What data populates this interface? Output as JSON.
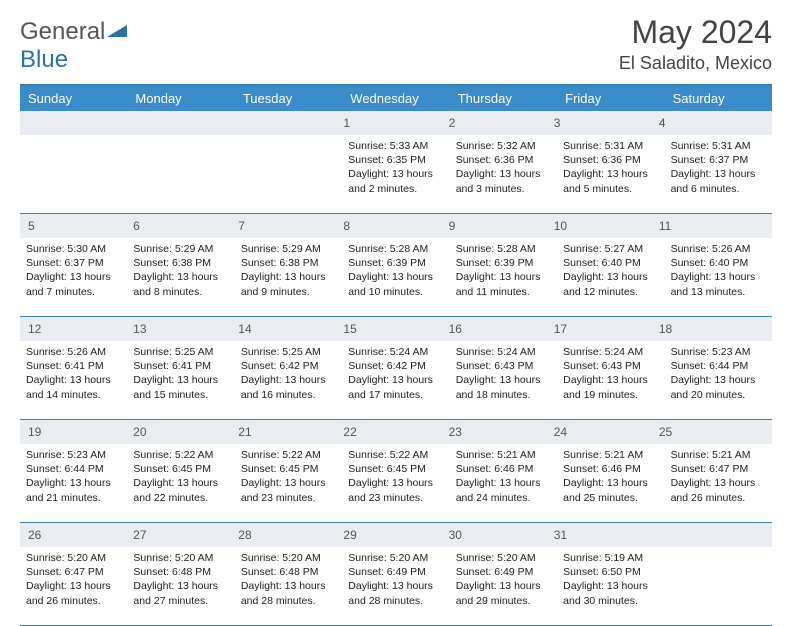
{
  "logo": {
    "part1": "General",
    "part2": "Blue"
  },
  "title": "May 2024",
  "location": "El Saladito, Mexico",
  "header_color": "#3a8bc9",
  "border_color": "#3a7fb5",
  "numrow_bg": "#e9edf1",
  "day_names": [
    "Sunday",
    "Monday",
    "Tuesday",
    "Wednesday",
    "Thursday",
    "Friday",
    "Saturday"
  ],
  "weeks": [
    {
      "nums": [
        "",
        "",
        "",
        "1",
        "2",
        "3",
        "4"
      ],
      "cells": [
        null,
        null,
        null,
        {
          "sr": "5:33 AM",
          "ss": "6:35 PM",
          "dl": "13 hours and 2 minutes."
        },
        {
          "sr": "5:32 AM",
          "ss": "6:36 PM",
          "dl": "13 hours and 3 minutes."
        },
        {
          "sr": "5:31 AM",
          "ss": "6:36 PM",
          "dl": "13 hours and 5 minutes."
        },
        {
          "sr": "5:31 AM",
          "ss": "6:37 PM",
          "dl": "13 hours and 6 minutes."
        }
      ]
    },
    {
      "nums": [
        "5",
        "6",
        "7",
        "8",
        "9",
        "10",
        "11"
      ],
      "cells": [
        {
          "sr": "5:30 AM",
          "ss": "6:37 PM",
          "dl": "13 hours and 7 minutes."
        },
        {
          "sr": "5:29 AM",
          "ss": "6:38 PM",
          "dl": "13 hours and 8 minutes."
        },
        {
          "sr": "5:29 AM",
          "ss": "6:38 PM",
          "dl": "13 hours and 9 minutes."
        },
        {
          "sr": "5:28 AM",
          "ss": "6:39 PM",
          "dl": "13 hours and 10 minutes."
        },
        {
          "sr": "5:28 AM",
          "ss": "6:39 PM",
          "dl": "13 hours and 11 minutes."
        },
        {
          "sr": "5:27 AM",
          "ss": "6:40 PM",
          "dl": "13 hours and 12 minutes."
        },
        {
          "sr": "5:26 AM",
          "ss": "6:40 PM",
          "dl": "13 hours and 13 minutes."
        }
      ]
    },
    {
      "nums": [
        "12",
        "13",
        "14",
        "15",
        "16",
        "17",
        "18"
      ],
      "cells": [
        {
          "sr": "5:26 AM",
          "ss": "6:41 PM",
          "dl": "13 hours and 14 minutes."
        },
        {
          "sr": "5:25 AM",
          "ss": "6:41 PM",
          "dl": "13 hours and 15 minutes."
        },
        {
          "sr": "5:25 AM",
          "ss": "6:42 PM",
          "dl": "13 hours and 16 minutes."
        },
        {
          "sr": "5:24 AM",
          "ss": "6:42 PM",
          "dl": "13 hours and 17 minutes."
        },
        {
          "sr": "5:24 AM",
          "ss": "6:43 PM",
          "dl": "13 hours and 18 minutes."
        },
        {
          "sr": "5:24 AM",
          "ss": "6:43 PM",
          "dl": "13 hours and 19 minutes."
        },
        {
          "sr": "5:23 AM",
          "ss": "6:44 PM",
          "dl": "13 hours and 20 minutes."
        }
      ]
    },
    {
      "nums": [
        "19",
        "20",
        "21",
        "22",
        "23",
        "24",
        "25"
      ],
      "cells": [
        {
          "sr": "5:23 AM",
          "ss": "6:44 PM",
          "dl": "13 hours and 21 minutes."
        },
        {
          "sr": "5:22 AM",
          "ss": "6:45 PM",
          "dl": "13 hours and 22 minutes."
        },
        {
          "sr": "5:22 AM",
          "ss": "6:45 PM",
          "dl": "13 hours and 23 minutes."
        },
        {
          "sr": "5:22 AM",
          "ss": "6:45 PM",
          "dl": "13 hours and 23 minutes."
        },
        {
          "sr": "5:21 AM",
          "ss": "6:46 PM",
          "dl": "13 hours and 24 minutes."
        },
        {
          "sr": "5:21 AM",
          "ss": "6:46 PM",
          "dl": "13 hours and 25 minutes."
        },
        {
          "sr": "5:21 AM",
          "ss": "6:47 PM",
          "dl": "13 hours and 26 minutes."
        }
      ]
    },
    {
      "nums": [
        "26",
        "27",
        "28",
        "29",
        "30",
        "31",
        ""
      ],
      "cells": [
        {
          "sr": "5:20 AM",
          "ss": "6:47 PM",
          "dl": "13 hours and 26 minutes."
        },
        {
          "sr": "5:20 AM",
          "ss": "6:48 PM",
          "dl": "13 hours and 27 minutes."
        },
        {
          "sr": "5:20 AM",
          "ss": "6:48 PM",
          "dl": "13 hours and 28 minutes."
        },
        {
          "sr": "5:20 AM",
          "ss": "6:49 PM",
          "dl": "13 hours and 28 minutes."
        },
        {
          "sr": "5:20 AM",
          "ss": "6:49 PM",
          "dl": "13 hours and 29 minutes."
        },
        {
          "sr": "5:19 AM",
          "ss": "6:50 PM",
          "dl": "13 hours and 30 minutes."
        },
        null
      ]
    }
  ],
  "labels": {
    "sunrise": "Sunrise: ",
    "sunset": "Sunset: ",
    "daylight": "Daylight: "
  }
}
